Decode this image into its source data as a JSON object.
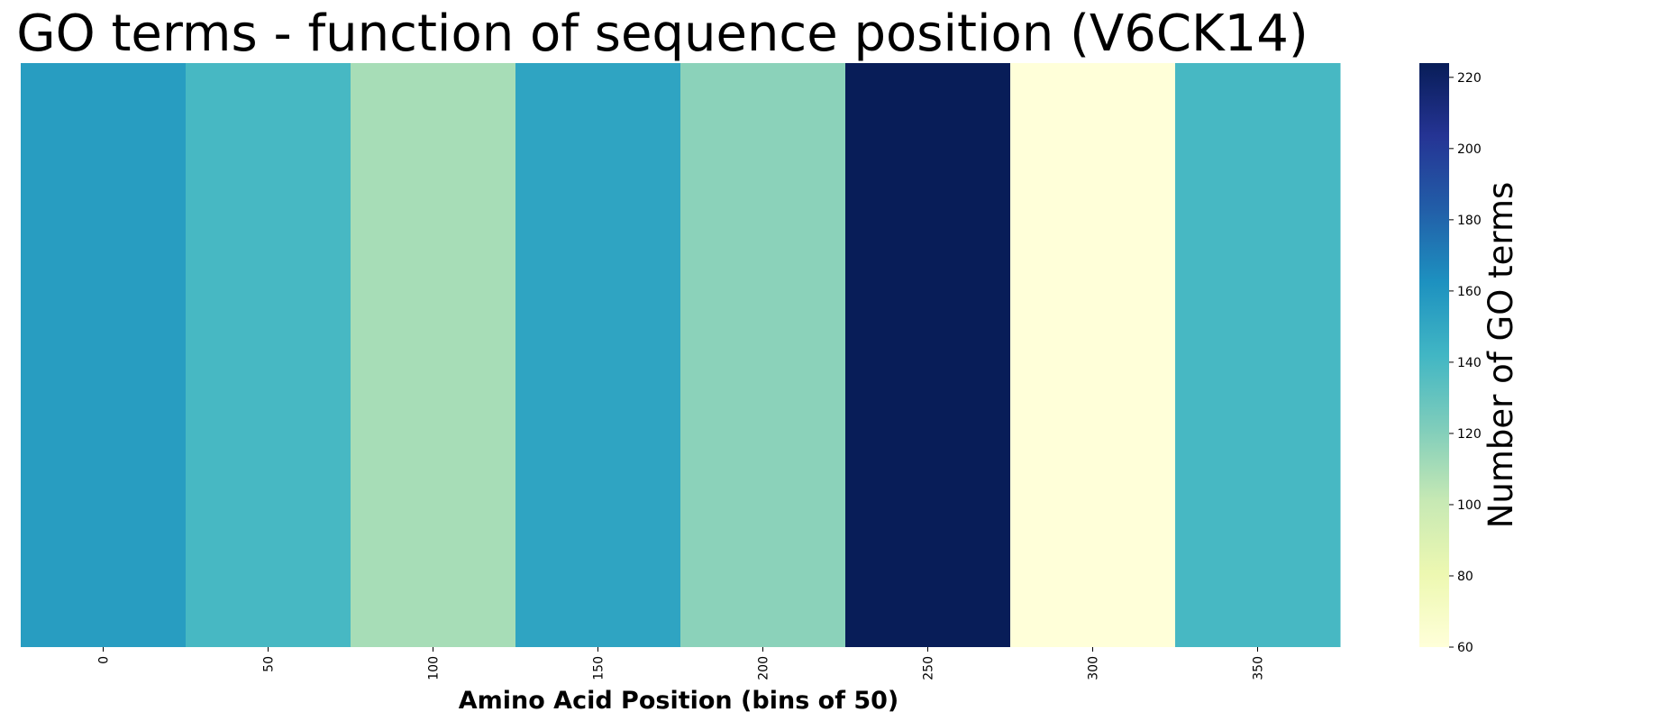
{
  "chart_data": {
    "type": "heatmap",
    "title": "GO terms - function of sequence position (V6CK14)",
    "xlabel": "Amino Acid Position (bins of 50)",
    "ylabel": "",
    "categories": [
      "0",
      "50",
      "100",
      "150",
      "200",
      "250",
      "300",
      "350"
    ],
    "values": [
      156,
      140,
      110,
      152,
      118,
      224,
      60,
      140
    ],
    "colorbar": {
      "label": "Number of GO terms",
      "range": [
        60,
        224
      ],
      "ticks": [
        "60",
        "80",
        "100",
        "120",
        "140",
        "160",
        "180",
        "200",
        "220"
      ],
      "colormap": "YlGnBu"
    },
    "grid": false
  }
}
